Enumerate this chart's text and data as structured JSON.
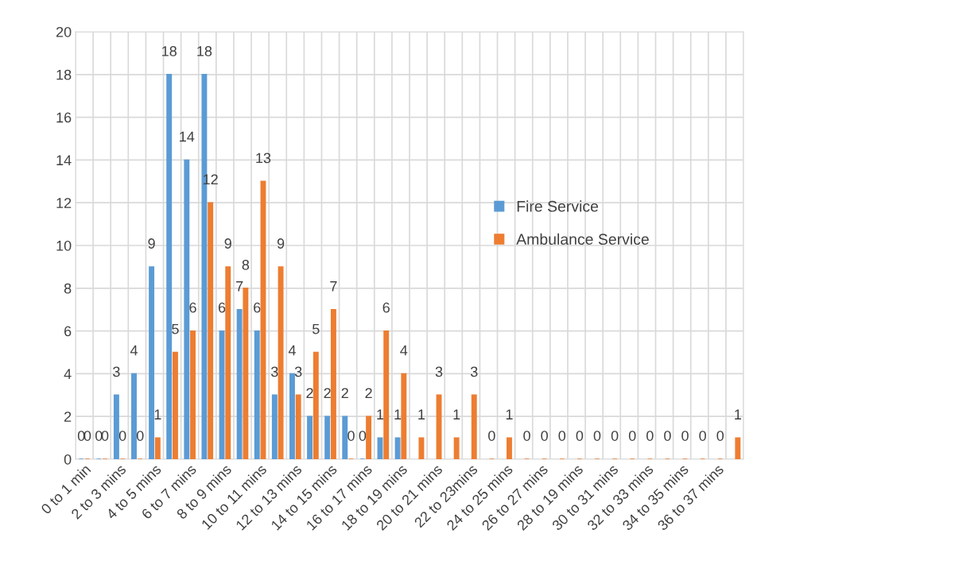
{
  "chart_data": {
    "type": "bar",
    "categories": [
      "0 to 1 min",
      null,
      "2 to 3 mins",
      null,
      "4 to 5 mins",
      null,
      "6 to 7 mins",
      null,
      "8 to 9 mins",
      null,
      "10 to 11 mins",
      null,
      "12 to 13 mins",
      null,
      "14 to 15 mins",
      null,
      "16 to 17 mins",
      null,
      "18 to 19 mins",
      null,
      "20 to 21 mins",
      null,
      "22 to 23mins",
      null,
      "24 to 25 mins",
      null,
      "26 to 27 mins",
      null,
      "28 to 19 mins",
      null,
      "30 to 31 mins",
      null,
      "32 to 33 mins",
      null,
      "34 to 35 mins",
      null,
      "36 to 37 mins",
      null
    ],
    "series": [
      {
        "name": "Fire Service",
        "color": "#5b9bd5",
        "values": [
          0,
          0,
          3,
          4,
          9,
          18,
          14,
          18,
          6,
          7,
          6,
          3,
          4,
          2,
          2,
          2,
          0,
          1,
          1,
          null,
          null,
          null,
          null,
          null,
          null,
          null,
          null,
          null,
          null,
          null,
          null,
          null,
          null,
          null,
          null,
          null,
          null,
          null
        ]
      },
      {
        "name": "Ambulance Service",
        "color": "#ed7d31",
        "values": [
          0,
          0,
          0,
          0,
          1,
          5,
          6,
          12,
          9,
          8,
          13,
          9,
          3,
          5,
          7,
          0,
          2,
          6,
          4,
          1,
          3,
          1,
          3,
          0,
          1,
          0,
          0,
          0,
          0,
          0,
          0,
          0,
          0,
          0,
          0,
          0,
          0,
          1
        ]
      }
    ],
    "ylim": [
      0,
      20
    ],
    "yticks": [
      0,
      2,
      4,
      6,
      8,
      10,
      12,
      14,
      16,
      18,
      20
    ],
    "grid": true,
    "legend": "right",
    "data_labels": true
  }
}
